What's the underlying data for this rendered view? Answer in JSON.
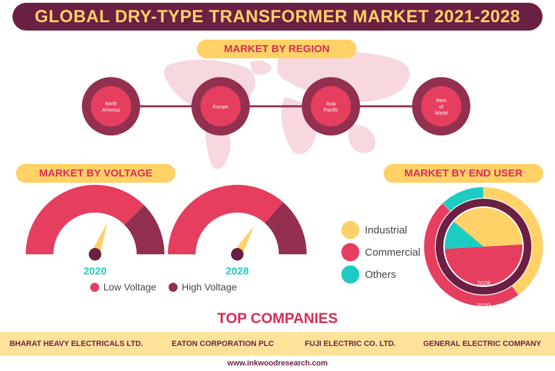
{
  "title": "GLOBAL DRY-TYPE TRANSFORMER MARKET 2021-2028",
  "region": {
    "heading": "MARKET BY REGION",
    "items": [
      "North America",
      "Europe",
      "Asia Pacific",
      "Rest of World"
    ]
  },
  "voltage": {
    "heading": "MARKET BY VOLTAGE",
    "years": [
      "2020",
      "2028"
    ],
    "legend": [
      "Low Voltage",
      "High Voltage"
    ],
    "colors": {
      "low": "#e63e5f",
      "high": "#93304f",
      "needle": "#ffd166",
      "hub": "#6b1f43"
    }
  },
  "enduser": {
    "heading": "MARKET BY END USER",
    "legend": [
      "Industrial",
      "Commercial",
      "Others"
    ],
    "colors": {
      "industrial": "#ffd166",
      "commercial": "#e63e5f",
      "others": "#1ecbc2"
    },
    "ring_labels": [
      "2028",
      "2020"
    ]
  },
  "chart_data": [
    {
      "type": "pie",
      "subtype": "gauge",
      "title": "MARKET BY VOLTAGE",
      "year": "2020",
      "categories": [
        "Low Voltage",
        "High Voltage"
      ],
      "values": [
        0.75,
        0.25
      ],
      "needle_fraction": 0.62
    },
    {
      "type": "pie",
      "subtype": "gauge",
      "title": "MARKET BY VOLTAGE",
      "year": "2028",
      "categories": [
        "Low Voltage",
        "High Voltage"
      ],
      "values": [
        0.73,
        0.27
      ],
      "needle_fraction": 0.67
    },
    {
      "type": "pie",
      "subtype": "donut",
      "title": "MARKET BY END USER",
      "ring": "2020",
      "categories": [
        "Industrial",
        "Commercial",
        "Others"
      ],
      "values": [
        0.4,
        0.48,
        0.12
      ]
    },
    {
      "type": "pie",
      "subtype": "donut",
      "title": "MARKET BY END USER",
      "ring": "2028",
      "categories": [
        "Industrial",
        "Commercial",
        "Others"
      ],
      "values": [
        0.38,
        0.5,
        0.12
      ]
    }
  ],
  "top_companies": {
    "heading": "TOP COMPANIES",
    "items": [
      "BHARAT HEAVY ELECTRICALS LTD.",
      "EATON CORPORATION PLC",
      "FUJI ELECTRIC CO. LTD.",
      "GENERAL ELECTRIC COMPANY"
    ]
  },
  "url": "www.inkwoodresearch.com"
}
